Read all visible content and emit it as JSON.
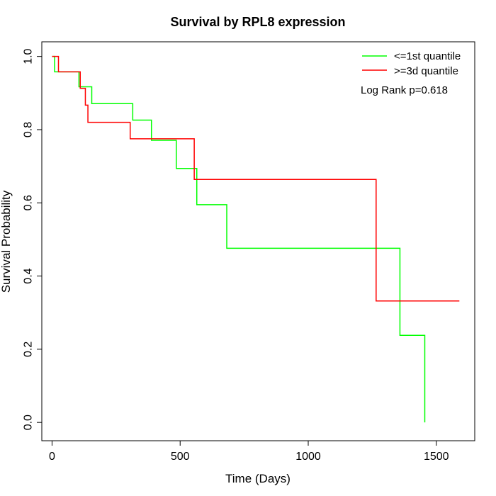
{
  "chart_data": {
    "type": "line",
    "title": "Survival by RPL8 expression",
    "xlabel": "Time (Days)",
    "ylabel": "Survival Probability",
    "xlim": [
      -40,
      1650
    ],
    "ylim": [
      -0.05,
      1.04
    ],
    "x_ticks": [
      0,
      500,
      1000,
      1500
    ],
    "y_ticks": [
      0.0,
      0.2,
      0.4,
      0.6,
      0.8,
      1.0
    ],
    "x_tick_labels": [
      "0",
      "500",
      "1000",
      "1500"
    ],
    "y_tick_labels": [
      "0.0",
      "0.2",
      "0.4",
      "0.6",
      "0.8",
      "1.0"
    ],
    "legend_position": "top-right",
    "annotation": "Log Rank p=0.618",
    "series": [
      {
        "name": "<=1st quantile",
        "color": "#00ff00",
        "steps": [
          [
            0,
            1.0
          ],
          [
            10,
            0.958
          ],
          [
            105,
            0.917
          ],
          [
            155,
            0.871
          ],
          [
            315,
            0.826
          ],
          [
            388,
            0.771
          ],
          [
            485,
            0.694
          ],
          [
            565,
            0.595
          ],
          [
            682,
            0.476
          ],
          [
            1358,
            0.238
          ],
          [
            1455,
            0.0
          ]
        ],
        "end_x": 1455
      },
      {
        "name": ">=3d quantile",
        "color": "#ff0000",
        "steps": [
          [
            0,
            1.0
          ],
          [
            25,
            0.958
          ],
          [
            110,
            0.913
          ],
          [
            130,
            0.867
          ],
          [
            140,
            0.82
          ],
          [
            305,
            0.775
          ],
          [
            555,
            0.664
          ],
          [
            1265,
            0.332
          ]
        ],
        "end_x": 1590
      }
    ]
  }
}
